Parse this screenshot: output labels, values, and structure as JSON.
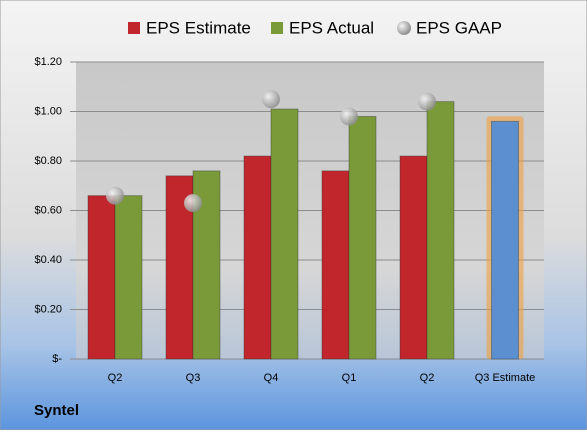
{
  "chart_data": {
    "type": "bar",
    "title": "Syntel",
    "categories": [
      "Q2",
      "Q3",
      "Q4",
      "Q1",
      "Q2",
      "Q3 Estimate"
    ],
    "series": [
      {
        "name": "EPS Estimate",
        "color": "#c0262b",
        "values": [
          0.66,
          0.74,
          0.82,
          0.76,
          0.82,
          0.96
        ]
      },
      {
        "name": "EPS Actual",
        "color": "#7a9a3a",
        "values": [
          0.66,
          0.76,
          1.01,
          0.98,
          1.04,
          null
        ]
      },
      {
        "name": "EPS GAAP",
        "color": "#a8a8a8",
        "values": [
          0.66,
          0.63,
          1.05,
          0.98,
          1.04,
          null
        ]
      }
    ],
    "highlight_color": "#5b8fd0",
    "ylim": [
      0,
      1.2
    ],
    "yticks": [
      {
        "value": 0,
        "label": "$-"
      },
      {
        "value": 0.2,
        "label": "$0.20"
      },
      {
        "value": 0.4,
        "label": "$0.40"
      },
      {
        "value": 0.6,
        "label": "$0.60"
      },
      {
        "value": 0.8,
        "label": "$0.80"
      },
      {
        "value": 1.0,
        "label": "$1.00"
      },
      {
        "value": 1.2,
        "label": "$1.20"
      }
    ],
    "grid": true
  }
}
